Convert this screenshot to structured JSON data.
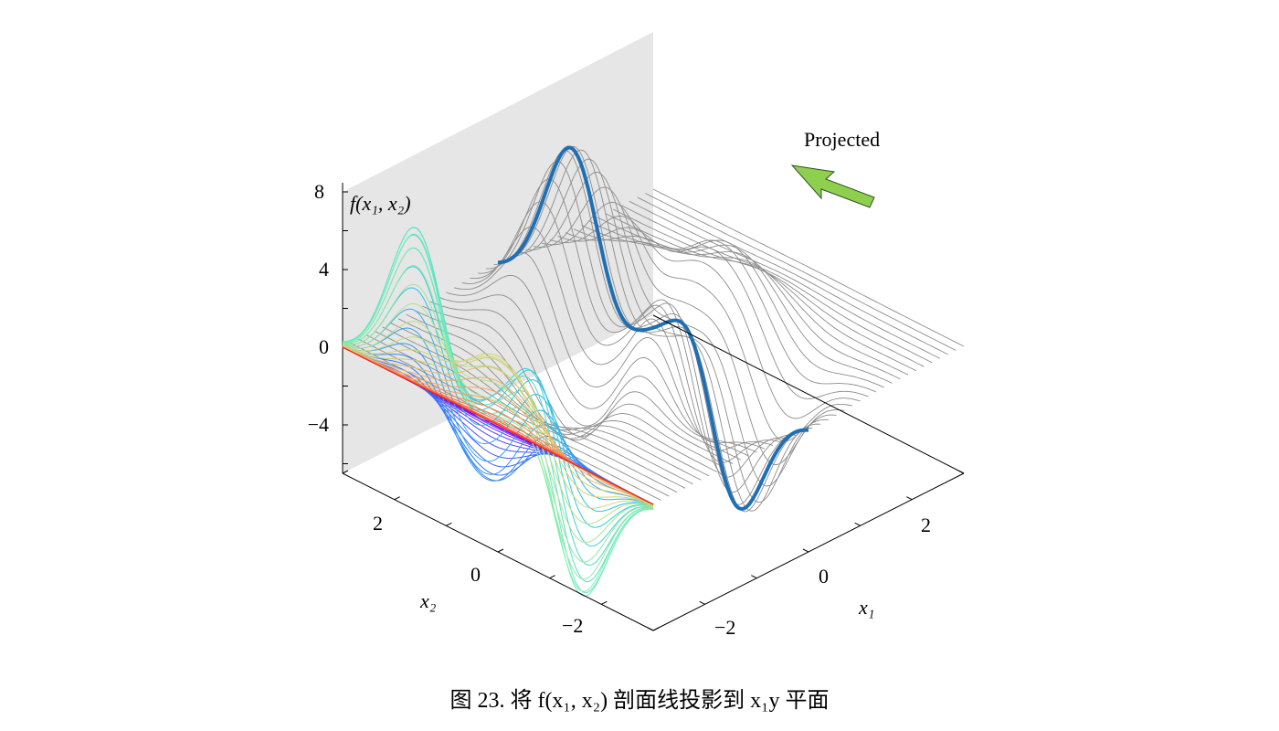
{
  "caption": "图 23. 将 f(x₁, x₂) 剖面线投影到 x₁y 平面",
  "annotation": "Projected",
  "colors": {
    "plane": "#e6e6e6",
    "gray_lines": "#8c8c8c",
    "highlight": "#1f6fb4",
    "arrow_fill": "#8fcf4f",
    "arrow_stroke": "#2f4f1f"
  },
  "chart_data": {
    "type": "surface-profiles-3d",
    "xlabel": "x₁",
    "ylabel": "x₂",
    "zlabel": "f(x₁, x₂)",
    "x1_ticks": [
      "−2",
      "0",
      "2"
    ],
    "x2_ticks": [
      "2",
      "0",
      "−2"
    ],
    "z_ticks": [
      "8",
      "4",
      "0",
      "−4"
    ],
    "x1_range": [
      -3,
      3
    ],
    "x2_range": [
      -3,
      3
    ],
    "z_range": [
      -6,
      8
    ],
    "colormap": "rainbow",
    "n_profiles": 40,
    "highlighted_profile_x1": 0
  }
}
